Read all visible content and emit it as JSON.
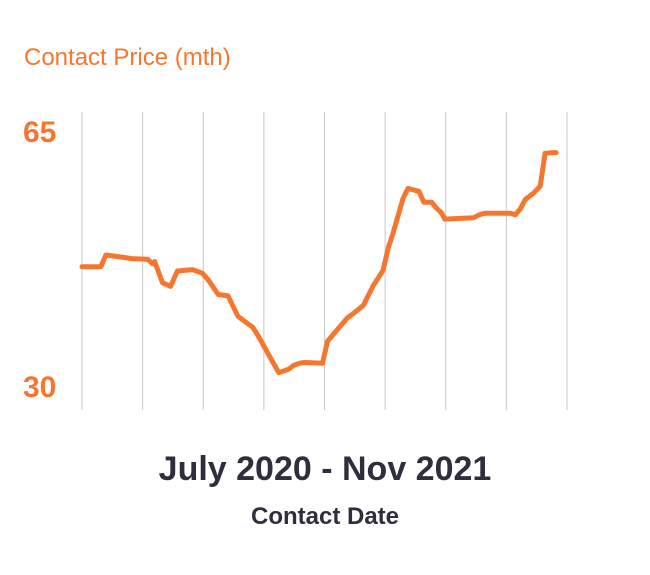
{
  "chart_data": {
    "type": "line",
    "title": "",
    "ylabel": "Contact Price (mth)",
    "xlabel": "Contact Date",
    "x_range_label": "July 2020 - Nov 2021",
    "y_ticks": [
      "65",
      "30"
    ],
    "ylim": [
      30,
      65
    ],
    "x": [
      "2020-07-01",
      "2020-07-20",
      "2020-07-25",
      "2020-08-10",
      "2020-08-20",
      "2020-09-05",
      "2020-09-10",
      "2020-09-12",
      "2020-09-20",
      "2020-09-28",
      "2020-10-05",
      "2020-10-20",
      "2020-10-30",
      "2020-11-05",
      "2020-11-15",
      "2020-11-25",
      "2020-12-05",
      "2020-12-20",
      "2020-12-25",
      "2021-01-08",
      "2021-01-15",
      "2021-01-25",
      "2021-01-30",
      "2021-02-05",
      "2021-02-10",
      "2021-02-28",
      "2021-03-05",
      "2021-03-25",
      "2021-04-01",
      "2021-04-10",
      "2021-04-20",
      "2021-04-30",
      "2021-05-05",
      "2021-05-10",
      "2021-05-20",
      "2021-05-25",
      "2021-06-05",
      "2021-06-10",
      "2021-06-15",
      "2021-06-18",
      "2021-06-22",
      "2021-06-28",
      "2021-07-01",
      "2021-07-30",
      "2021-08-05",
      "2021-08-10",
      "2021-08-25",
      "2021-09-05",
      "2021-09-10",
      "2021-09-15",
      "2021-09-20",
      "2021-09-28",
      "2021-10-05",
      "2021-10-10",
      "2021-10-18",
      "2021-10-21"
    ],
    "values": [
      47.0,
      47.0,
      48.6,
      48.3,
      48.1,
      48.0,
      47.4,
      47.7,
      44.8,
      44.3,
      46.4,
      46.6,
      46.1,
      45.2,
      43.2,
      43.0,
      40.2,
      38.7,
      37.6,
      34.2,
      32.5,
      33.0,
      33.5,
      33.8,
      33.9,
      33.8,
      36.8,
      40.0,
      40.7,
      41.7,
      44.4,
      46.5,
      49.5,
      51.6,
      56.3,
      57.7,
      57.3,
      55.8,
      55.8,
      55.8,
      55.1,
      54.3,
      53.5,
      53.7,
      54.1,
      54.3,
      54.3,
      54.3,
      54.1,
      54.9,
      56.2,
      57.0,
      58.0,
      62.5,
      62.6,
      62.6
    ],
    "grid": "vertical",
    "legend": "none",
    "line_color": "#f5772f",
    "grid_color": "#c8c8c8",
    "text_color": "#2e2e3e"
  }
}
